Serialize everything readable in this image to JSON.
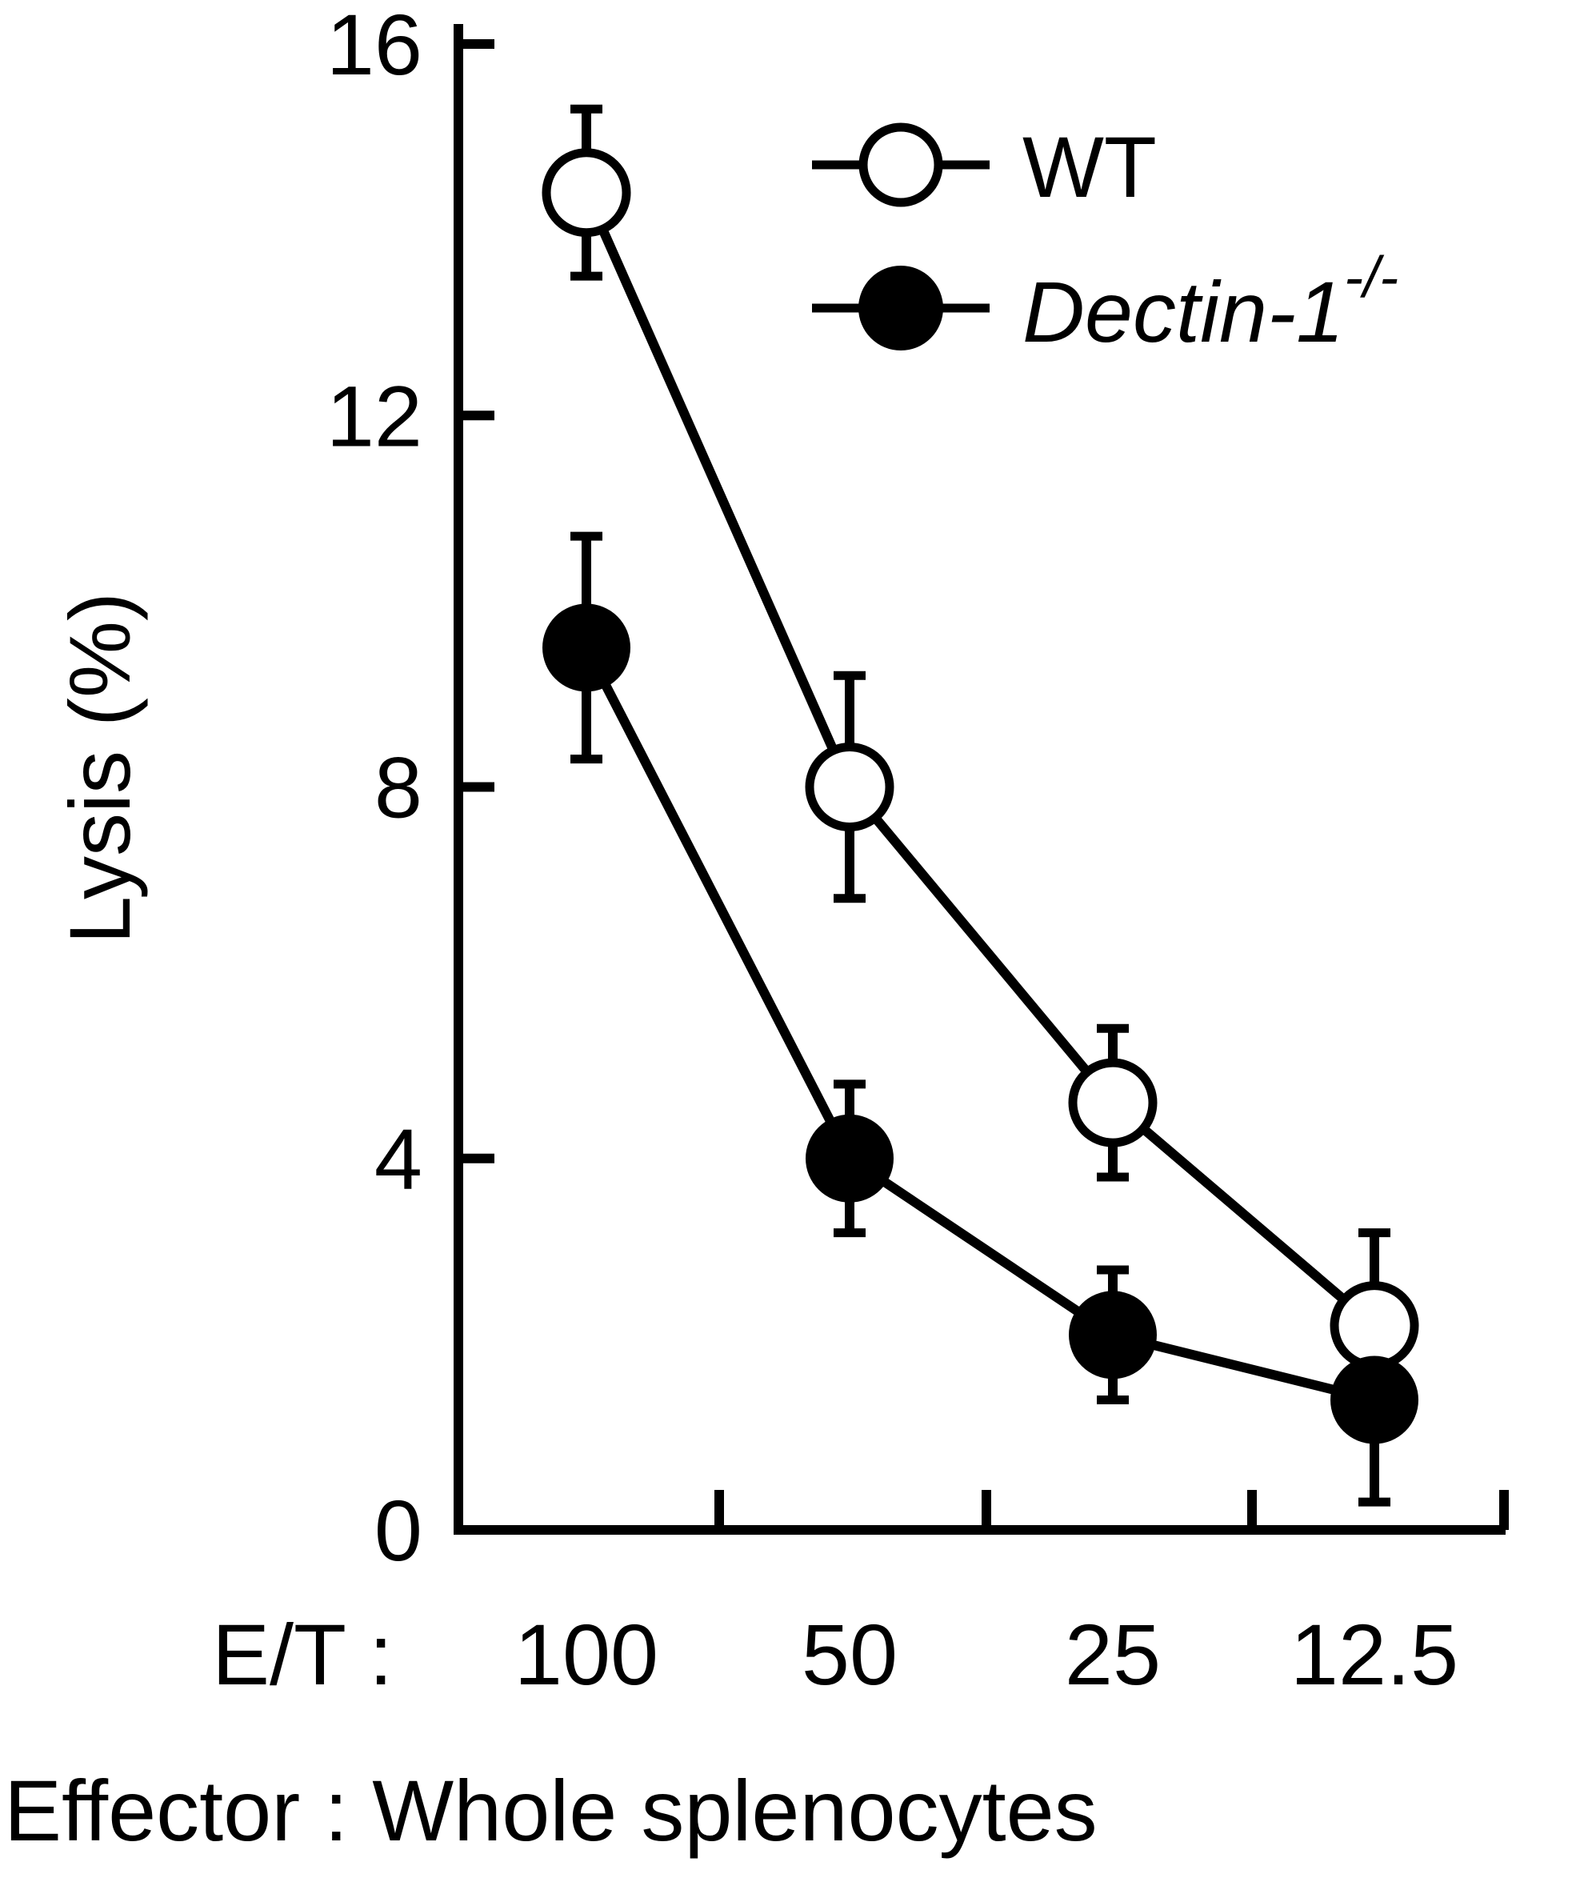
{
  "chart_data": {
    "type": "line",
    "ylabel": "Lysis (%)",
    "xlabel_prefix": "E/T :",
    "x_categories": [
      "100",
      "50",
      "25",
      "12.5"
    ],
    "ylim": [
      0,
      16
    ],
    "yticks": [
      "0",
      "4",
      "8",
      "12",
      "16"
    ],
    "footer": "Effector : Whole splenocytes",
    "legend_position": "top-right",
    "grid": false,
    "series": [
      {
        "name": "WT",
        "name_sup": "",
        "marker": "open-circle",
        "values": [
          14.4,
          8.0,
          4.6,
          2.2
        ],
        "errors": [
          0.9,
          1.2,
          0.8,
          1.0
        ]
      },
      {
        "name": "Dectin-1",
        "name_sup": "-/-",
        "marker": "filled-circle",
        "values": [
          9.5,
          4.0,
          2.1,
          1.4
        ],
        "errors": [
          1.2,
          0.8,
          0.7,
          1.1
        ]
      }
    ]
  }
}
